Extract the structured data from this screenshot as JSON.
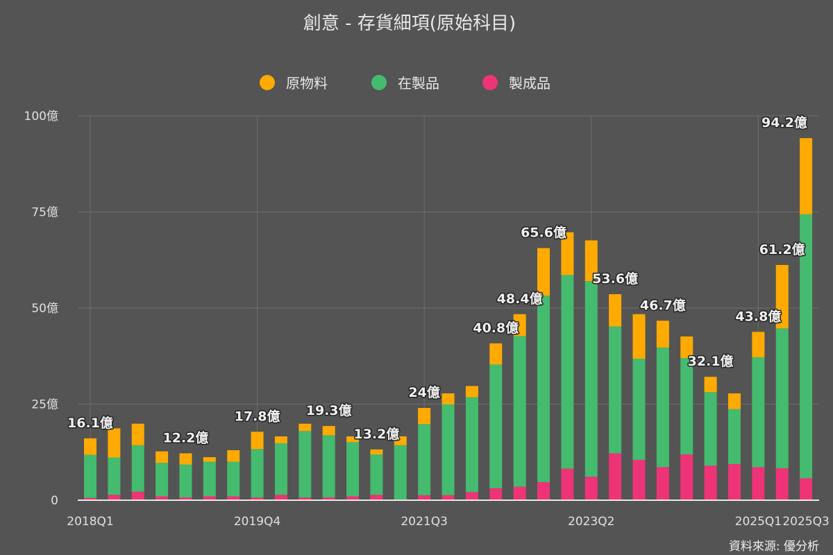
{
  "chart_data": {
    "type": "bar",
    "stacked": true,
    "title": "創意 - 存貨細項(原始科目)",
    "source": "資料來源: 優分析",
    "legend_position": "top",
    "grid": true,
    "ylim": [
      0,
      100
    ],
    "y_ticks": [
      0,
      25,
      50,
      75,
      100
    ],
    "y_tick_labels": [
      "0",
      "25億",
      "50億",
      "75億",
      "100億"
    ],
    "x_tick_labels": [
      {
        "category": "2018Q1",
        "label": "2018Q1"
      },
      {
        "category": "2019Q4",
        "label": "2019Q4"
      },
      {
        "category": "2021Q3",
        "label": "2021Q3"
      },
      {
        "category": "2023Q2",
        "label": "2023Q2"
      },
      {
        "category": "2025Q1",
        "label": "2025Q1"
      },
      {
        "category": "2025Q3",
        "label": "2025Q3"
      }
    ],
    "categories": [
      "2018Q1",
      "2018Q2",
      "2018Q3",
      "2018Q4",
      "2019Q1",
      "2019Q2",
      "2019Q3",
      "2019Q4",
      "2020Q1",
      "2020Q2",
      "2020Q3",
      "2020Q4",
      "2021Q1",
      "2021Q2",
      "2021Q3",
      "2021Q4",
      "2022Q1",
      "2022Q2",
      "2022Q3",
      "2022Q4",
      "2023Q1",
      "2023Q2",
      "2023Q3",
      "2023Q4",
      "2024Q1",
      "2024Q2",
      "2024Q3",
      "2024Q4",
      "2025Q1",
      "2025Q2",
      "2025Q3"
    ],
    "series": [
      {
        "name": "製成品",
        "color": "#ee3377",
        "values": [
          0.6,
          1.4,
          2.2,
          1.0,
          0.7,
          1.0,
          1.0,
          0.7,
          1.4,
          0.7,
          0.7,
          1.0,
          1.4,
          0.2,
          1.3,
          1.3,
          2.1,
          3.1,
          3.5,
          4.7,
          8.2,
          6.1,
          12.2,
          10.5,
          8.6,
          11.9,
          9.0,
          9.4,
          8.6,
          8.3,
          5.7
        ]
      },
      {
        "name": "在製品",
        "color": "#44bb6e",
        "values": [
          11.2,
          9.7,
          12.1,
          8.7,
          8.6,
          9.0,
          9.0,
          12.6,
          13.4,
          17.3,
          16.2,
          14.1,
          10.5,
          14.1,
          18.5,
          23.6,
          24.7,
          32.2,
          39.2,
          48.5,
          50.4,
          50.9,
          33.0,
          26.3,
          31.1,
          25.1,
          19.1,
          14.3,
          28.6,
          36.4,
          68.7
        ]
      },
      {
        "name": "原物料",
        "color": "#ffaa00",
        "values": [
          4.3,
          7.6,
          5.6,
          3.0,
          2.9,
          1.2,
          3.0,
          4.5,
          1.8,
          1.9,
          2.4,
          1.5,
          1.3,
          2.3,
          4.2,
          2.9,
          2.9,
          5.5,
          5.7,
          12.4,
          11.1,
          10.6,
          8.4,
          11.6,
          7.0,
          5.6,
          4.0,
          4.1,
          6.6,
          16.5,
          19.8
        ]
      }
    ],
    "legend_order": [
      "原物料",
      "在製品",
      "製成品"
    ],
    "data_labels": [
      {
        "category": "2018Q1",
        "text": "16.1億"
      },
      {
        "category": "2019Q1",
        "text": "12.2億"
      },
      {
        "category": "2019Q4",
        "text": "17.8億"
      },
      {
        "category": "2020Q3",
        "text": "19.3億"
      },
      {
        "category": "2021Q1",
        "text": "13.2億"
      },
      {
        "category": "2021Q3",
        "text": "24億"
      },
      {
        "category": "2022Q2",
        "text": "40.8億"
      },
      {
        "category": "2022Q3",
        "text": "48.4億"
      },
      {
        "category": "2022Q4",
        "text": "65.6億"
      },
      {
        "category": "2023Q3",
        "text": "53.6億"
      },
      {
        "category": "2024Q1",
        "text": "46.7億"
      },
      {
        "category": "2024Q3",
        "text": "32.1億"
      },
      {
        "category": "2025Q1",
        "text": "43.8億"
      },
      {
        "category": "2025Q2",
        "text": "61.2億"
      },
      {
        "category": "2025Q3",
        "text": "94.2億"
      }
    ]
  }
}
